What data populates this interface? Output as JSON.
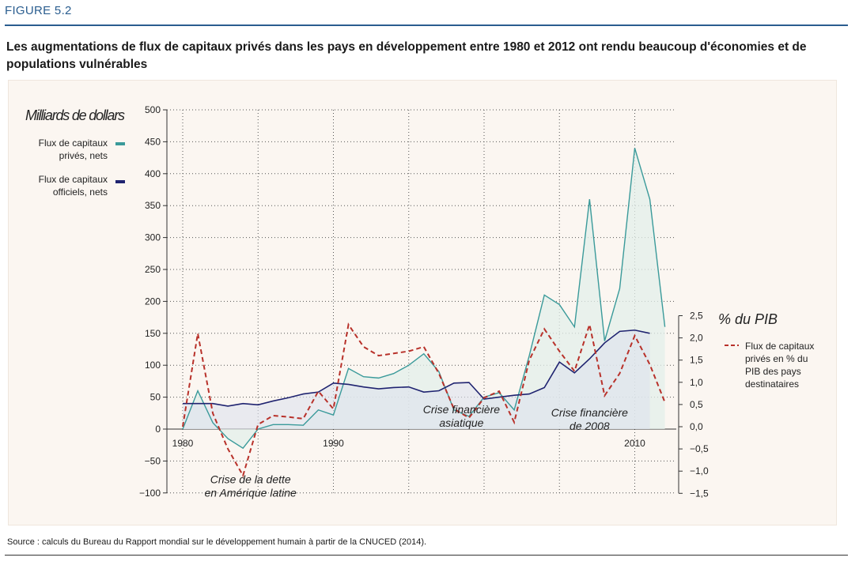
{
  "figure_label": "FIGURE 5.2",
  "title": "Les augmentations de flux de capitaux privés dans les pays en développement entre 1980 et 2012 ont rendu beaucoup d'économies et de populations vulnérables",
  "source": "Source : calculs du Bureau du Rapport mondial sur le développement humain à partir de la CNUCED (2014).",
  "chart_data": {
    "type": "line",
    "ylabel": "Milliards de dollars",
    "y2label": "% du PIB",
    "ylim": [
      -100,
      500
    ],
    "y2lim": [
      -1.5,
      2.5
    ],
    "y2_display_range": [
      -1.5,
      2.5
    ],
    "xlim": [
      1980,
      2012
    ],
    "x_ticks": [
      "1980",
      "1990",
      "2010"
    ],
    "x_gridlines": [
      1980,
      1985,
      1990,
      1995,
      2000,
      2005,
      2010
    ],
    "y_ticks": [
      "500",
      "450",
      "400",
      "350",
      "300",
      "250",
      "200",
      "150",
      "100",
      "50",
      "0",
      "−50",
      "−100"
    ],
    "y2_ticks": [
      "2,5",
      "2,0",
      "1,5",
      "1,0",
      "0,5",
      "0,0",
      "−0,5",
      "−1,0",
      "−1,5"
    ],
    "grid": "dotted",
    "legend_left": [
      {
        "label": "Flux de capitaux privés, nets",
        "color": "#3a9a9a"
      },
      {
        "label": "Flux de capitaux officiels, nets",
        "color": "#1f2370"
      }
    ],
    "legend_right": [
      {
        "label": "Flux de capitaux privés en % du PIB des pays destinataires",
        "color": "#b8312a"
      }
    ],
    "x": [
      1980,
      1981,
      1982,
      1983,
      1984,
      1985,
      1986,
      1987,
      1988,
      1989,
      1990,
      1991,
      1992,
      1993,
      1994,
      1995,
      1996,
      1997,
      1998,
      1999,
      2000,
      2001,
      2002,
      2003,
      2004,
      2005,
      2006,
      2007,
      2008,
      2009,
      2010,
      2011,
      2012
    ],
    "series": [
      {
        "name": "Flux de capitaux privés, nets",
        "axis": "left",
        "color": "#3a9a9a",
        "values": [
          0,
          60,
          10,
          -15,
          -30,
          0,
          7,
          7,
          6,
          30,
          22,
          95,
          82,
          80,
          87,
          100,
          118,
          90,
          30,
          20,
          50,
          57,
          30,
          115,
          210,
          195,
          160,
          360,
          138,
          220,
          440,
          360,
          160
        ]
      },
      {
        "name": "Flux de capitaux officiels, nets",
        "axis": "left",
        "color": "#1f2370",
        "values": [
          40,
          40,
          40,
          36,
          40,
          38,
          44,
          49,
          55,
          58,
          72,
          70,
          66,
          63,
          65,
          66,
          58,
          60,
          72,
          73,
          47,
          50,
          53,
          55,
          65,
          105,
          88,
          110,
          135,
          153,
          155,
          150,
          null
        ]
      },
      {
        "name": "Flux de capitaux privés en % du PIB des pays destinataires",
        "axis": "right",
        "color": "#b8312a",
        "values": [
          0.0,
          2.1,
          0.3,
          -0.5,
          -1.1,
          0.05,
          0.25,
          0.22,
          0.18,
          0.8,
          0.4,
          2.3,
          1.8,
          1.6,
          1.65,
          1.7,
          1.8,
          1.2,
          0.4,
          0.2,
          0.65,
          0.8,
          0.1,
          1.5,
          2.2,
          1.7,
          1.25,
          2.3,
          0.7,
          1.2,
          2.05,
          1.4,
          0.55
        ]
      }
    ],
    "annotations": [
      {
        "text": [
          "Crise de la dette",
          "en Amérique latine"
        ],
        "x": 1984.5,
        "y": -85
      },
      {
        "text": [
          "Crise financière",
          "asiatique"
        ],
        "x": 1998.5,
        "y": 25
      },
      {
        "text": [
          "Crise financière",
          "de 2008"
        ],
        "x": 2007,
        "y": 20
      }
    ]
  }
}
